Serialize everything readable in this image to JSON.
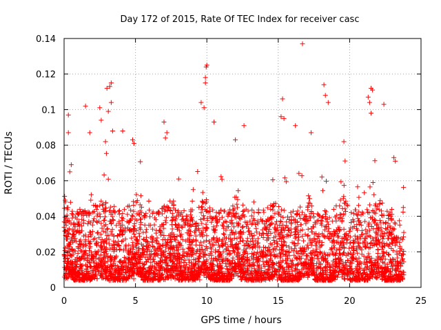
{
  "chart_data": {
    "type": "scatter",
    "title": "Day 172 of 2015, Rate Of TEC Index for receiver casc",
    "xlabel": "GPS time / hours",
    "ylabel": "ROTI / TECUs",
    "xlim": [
      0,
      25
    ],
    "ylim": [
      0,
      0.14
    ],
    "xticks": [
      0,
      5,
      10,
      15,
      20,
      25
    ],
    "xtick_labels": [
      "0",
      "5",
      "10",
      "15",
      "20",
      "25"
    ],
    "yticks": [
      0,
      0.02,
      0.04,
      0.06,
      0.08,
      0.1,
      0.12,
      0.14
    ],
    "ytick_labels": [
      "0",
      "0.02",
      "0.04",
      "0.06",
      "0.08",
      "0.1",
      "0.12",
      "0.14"
    ],
    "grid": true,
    "marker": "+",
    "color": "#ff0000",
    "data_range_x": [
      0,
      23.8
    ],
    "notes": "Dense cloud of points mostly between 0.005 and 0.05 TECU, peaks above 0.1",
    "series": [
      {
        "name": "ROTI",
        "points": [
          [
            0.3,
            0.097
          ],
          [
            0.3,
            0.087
          ],
          [
            0.4,
            0.065
          ],
          [
            0.5,
            0.069
          ],
          [
            1.5,
            0.102
          ],
          [
            1.8,
            0.087
          ],
          [
            2.5,
            0.101
          ],
          [
            2.6,
            0.094
          ],
          [
            2.9,
            0.082
          ],
          [
            3.0,
            0.112
          ],
          [
            3.2,
            0.113
          ],
          [
            3.3,
            0.115
          ],
          [
            3.3,
            0.104
          ],
          [
            3.1,
            0.099
          ],
          [
            3.4,
            0.088
          ],
          [
            4.1,
            0.088
          ],
          [
            4.8,
            0.083
          ],
          [
            4.9,
            0.081
          ],
          [
            7.0,
            0.093
          ],
          [
            7.2,
            0.087
          ],
          [
            7.1,
            0.084
          ],
          [
            9.6,
            0.104
          ],
          [
            9.8,
            0.101
          ],
          [
            9.9,
            0.118
          ],
          [
            9.95,
            0.124
          ],
          [
            10.0,
            0.125
          ],
          [
            9.9,
            0.115
          ],
          [
            10.5,
            0.093
          ],
          [
            12.0,
            0.083
          ],
          [
            12.6,
            0.091
          ],
          [
            15.3,
            0.106
          ],
          [
            15.2,
            0.096
          ],
          [
            15.4,
            0.095
          ],
          [
            16.2,
            0.091
          ],
          [
            16.7,
            0.137
          ],
          [
            17.3,
            0.087
          ],
          [
            18.2,
            0.114
          ],
          [
            18.3,
            0.108
          ],
          [
            18.5,
            0.104
          ],
          [
            19.6,
            0.082
          ],
          [
            21.3,
            0.107
          ],
          [
            21.5,
            0.112
          ],
          [
            21.6,
            0.111
          ],
          [
            21.4,
            0.104
          ],
          [
            21.5,
            0.098
          ],
          [
            22.4,
            0.103
          ],
          [
            23.1,
            0.073
          ],
          [
            23.2,
            0.071
          ]
        ]
      }
    ]
  }
}
